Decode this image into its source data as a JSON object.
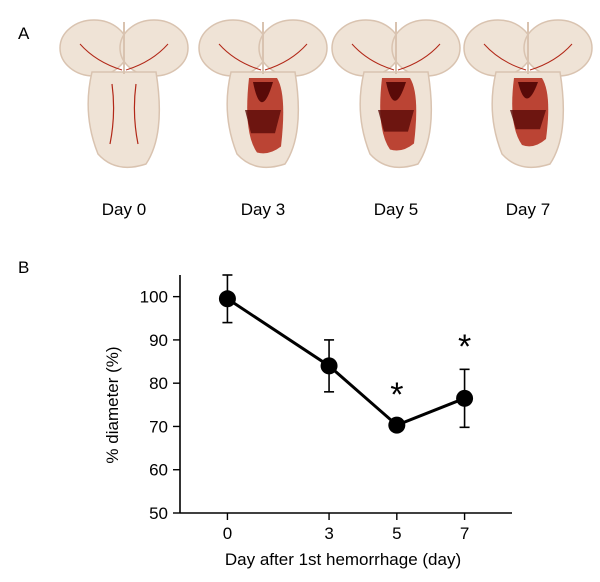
{
  "panel_a": {
    "label": "A",
    "images": [
      {
        "caption": "Day 0",
        "hemorrhage_level": 0.15
      },
      {
        "caption": "Day 3",
        "hemorrhage_level": 0.95
      },
      {
        "caption": "Day 5",
        "hemorrhage_level": 0.85
      },
      {
        "caption": "Day 7",
        "hemorrhage_level": 0.7
      }
    ],
    "colors": {
      "tissue": "#efe3d6",
      "tissue_shadow": "#d9c3b0",
      "blood": "#b22818",
      "blood_dark": "#5a0a08"
    }
  },
  "panel_b": {
    "label": "B"
  },
  "chart_data": {
    "type": "line",
    "xlabel": "Day after 1st hemorrhage (day)",
    "ylabel": "% diameter (%)",
    "x": [
      0,
      3,
      5,
      7
    ],
    "x_ticks": [
      "0",
      "3",
      "5",
      "7"
    ],
    "y_ticks": [
      "50",
      "60",
      "70",
      "80",
      "90",
      "100"
    ],
    "ylim": [
      50,
      105
    ],
    "xlim": [
      -1.4,
      8.4
    ],
    "series": [
      {
        "values": [
          99.5,
          84,
          70.3,
          76.5
        ],
        "errors": [
          5.5,
          6,
          0,
          6.7
        ],
        "color": "#000000"
      }
    ],
    "annotations": [
      {
        "x": 5,
        "text": "*",
        "y": 78
      },
      {
        "x": 7,
        "text": "*",
        "y": 89
      }
    ],
    "grid": false
  }
}
